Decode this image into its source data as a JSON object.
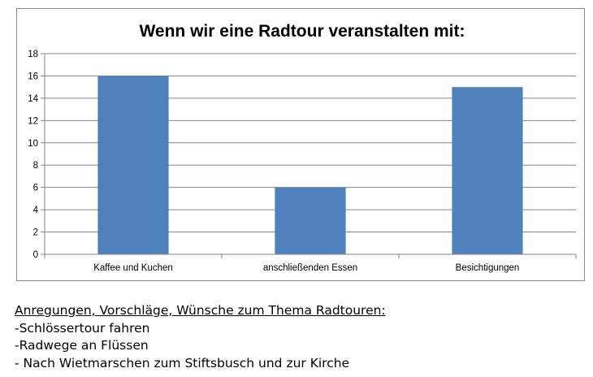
{
  "chart_data": {
    "type": "bar",
    "title": "Wenn wir eine Radtour veranstalten mit:",
    "categories": [
      "Kaffee und Kuchen",
      "anschließenden Essen",
      "Besichtigungen"
    ],
    "values": [
      16,
      6,
      15
    ],
    "ylim": [
      0,
      18
    ],
    "yticks": [
      0,
      2,
      4,
      6,
      8,
      10,
      12,
      14,
      16,
      18
    ],
    "grid": true,
    "legend": "none",
    "bar_color": "#4f81bd"
  },
  "notes": {
    "heading": "Anregungen, Vorschläge, Wünsche zum Thema Radtouren:",
    "items": [
      "-Schlössertour fahren",
      "-Radwege an Flüssen",
      "- Nach Wietmarschen zum Stiftsbusch und zur Kirche"
    ]
  }
}
